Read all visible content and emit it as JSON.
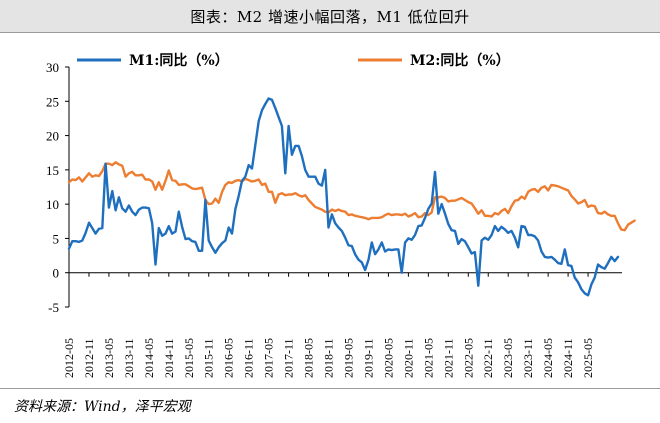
{
  "title": "图表：M2 增速小幅回落，M1 低位回升",
  "source": "资料来源：Wind，泽平宏观",
  "chart_data": {
    "type": "line",
    "ylim": [
      -5,
      30
    ],
    "yticks": [
      "30",
      "25",
      "20",
      "15",
      "10",
      "5",
      "0",
      "-5"
    ],
    "xtick_labels": [
      "2012-05",
      "2012-11",
      "2013-05",
      "2013-11",
      "2014-05",
      "2014-11",
      "2015-05",
      "2015-11",
      "2016-05",
      "2016-11",
      "2017-05",
      "2017-11",
      "2018-05",
      "2018-11",
      "2019-05",
      "2019-11",
      "2020-05",
      "2020-11",
      "2021-05",
      "2021-11",
      "2022-05",
      "2022-11",
      "2023-05",
      "2023-11",
      "2024-05",
      "2024-11",
      "2025-05"
    ],
    "grid": false,
    "legend_position": "top",
    "series": [
      {
        "name": "M1:同比（%）",
        "color": "#1f6fbf",
        "values": [
          3.5,
          4.6,
          4.6,
          4.5,
          4.7,
          5.8,
          7.3,
          6.5,
          5.7,
          6.4,
          6.5,
          15.9,
          9.5,
          11.9,
          9.1,
          11.0,
          9.4,
          8.9,
          9.8,
          8.9,
          8.4,
          9.2,
          9.5,
          9.5,
          9.4,
          7.2,
          1.2,
          6.5,
          5.4,
          5.7,
          6.8,
          5.7,
          6.0,
          8.9,
          6.7,
          4.9,
          5.0,
          4.6,
          4.5,
          3.2,
          3.2,
          10.6,
          4.7,
          3.7,
          2.9,
          3.7,
          4.3,
          4.7,
          6.6,
          5.7,
          9.3,
          11.2,
          13.4,
          14.0,
          15.7,
          15.2,
          18.6,
          22.1,
          23.7,
          24.6,
          25.4,
          25.2,
          24.0,
          22.7,
          21.4,
          14.5,
          21.4,
          17.2,
          18.5,
          18.5,
          17.0,
          15.0,
          14.0,
          14.0,
          14.0,
          13.0,
          12.7,
          15.0,
          6.6,
          8.5,
          7.2,
          6.6,
          6.1,
          5.1,
          4.0,
          3.9,
          2.7,
          1.9,
          1.5,
          0.4,
          1.9,
          4.4,
          2.7,
          3.4,
          4.4,
          3.1,
          3.4,
          3.3,
          3.4,
          3.4,
          0.0,
          4.4,
          5.0,
          4.8,
          5.5,
          6.8,
          6.9,
          8.0,
          9.3,
          10.1,
          14.7,
          8.6,
          10.0,
          8.6,
          7.1,
          6.2,
          6.1,
          4.2,
          4.9,
          4.6,
          3.7,
          2.8,
          3.0,
          -1.9,
          4.7,
          5.1,
          4.8,
          5.5,
          6.8,
          6.1,
          6.7,
          6.3,
          5.8,
          6.1,
          5.1,
          3.7,
          6.8,
          6.7,
          5.5,
          5.5,
          5.3,
          4.7,
          3.1,
          2.3,
          2.2,
          2.3,
          1.9,
          1.4,
          1.3,
          3.4,
          1.1,
          1.0,
          -0.7,
          -1.4,
          -2.4,
          -3.0,
          -3.3,
          -1.7,
          -0.7,
          1.2,
          0.8,
          0.6,
          1.4,
          2.3,
          1.7,
          2.3
        ]
      },
      {
        "name": "M2:同比（%）",
        "color": "#ed7d31",
        "values": [
          13.2,
          13.6,
          13.5,
          13.9,
          13.3,
          13.9,
          14.5,
          14.0,
          14.2,
          14.1,
          14.8,
          15.9,
          15.9,
          15.7,
          16.1,
          15.8,
          15.6,
          14.0,
          14.5,
          14.7,
          14.2,
          14.2,
          14.3,
          13.6,
          13.6,
          13.3,
          12.1,
          13.2,
          12.1,
          13.4,
          14.9,
          13.5,
          13.4,
          12.8,
          12.9,
          12.9,
          12.6,
          12.3,
          12.2,
          12.3,
          12.4,
          10.6,
          10.0,
          10.1,
          10.8,
          10.2,
          11.8,
          12.8,
          13.2,
          13.1,
          13.4,
          13.5,
          13.3,
          13.7,
          13.5,
          13.3,
          13.4,
          13.6,
          12.8,
          13.0,
          11.8,
          11.8,
          10.2,
          11.4,
          11.6,
          11.3,
          11.4,
          11.4,
          11.6,
          11.3,
          11.1,
          11.3,
          10.6,
          10.1,
          9.6,
          9.4,
          9.2,
          8.9,
          8.8,
          9.2,
          9.0,
          9.2,
          9.0,
          8.9,
          8.4,
          8.5,
          8.3,
          8.2,
          8.1,
          8.0,
          7.8,
          8.0,
          8.0,
          8.0,
          8.1,
          8.4,
          8.6,
          8.4,
          8.5,
          8.5,
          8.4,
          8.6,
          8.2,
          8.4,
          8.7,
          8.1,
          8.2,
          8.7,
          8.4,
          8.8,
          11.0,
          11.0,
          11.1,
          10.9,
          10.4,
          10.5,
          10.5,
          10.7,
          10.9,
          10.6,
          10.3,
          10.1,
          9.4,
          8.6,
          9.1,
          8.3,
          8.3,
          8.2,
          8.7,
          8.5,
          9.0,
          9.3,
          8.7,
          9.7,
          10.5,
          10.6,
          11.1,
          10.8,
          11.8,
          12.1,
          12.2,
          11.8,
          12.4,
          12.6,
          12.0,
          12.8,
          12.7,
          12.6,
          12.4,
          12.2,
          12.0,
          11.2,
          10.7,
          10.1,
          10.3,
          10.6,
          9.6,
          9.8,
          9.7,
          8.7,
          8.6,
          8.9,
          8.5,
          8.3,
          8.3,
          7.2,
          6.3,
          6.2,
          7.0,
          7.3,
          7.6
        ]
      }
    ]
  }
}
